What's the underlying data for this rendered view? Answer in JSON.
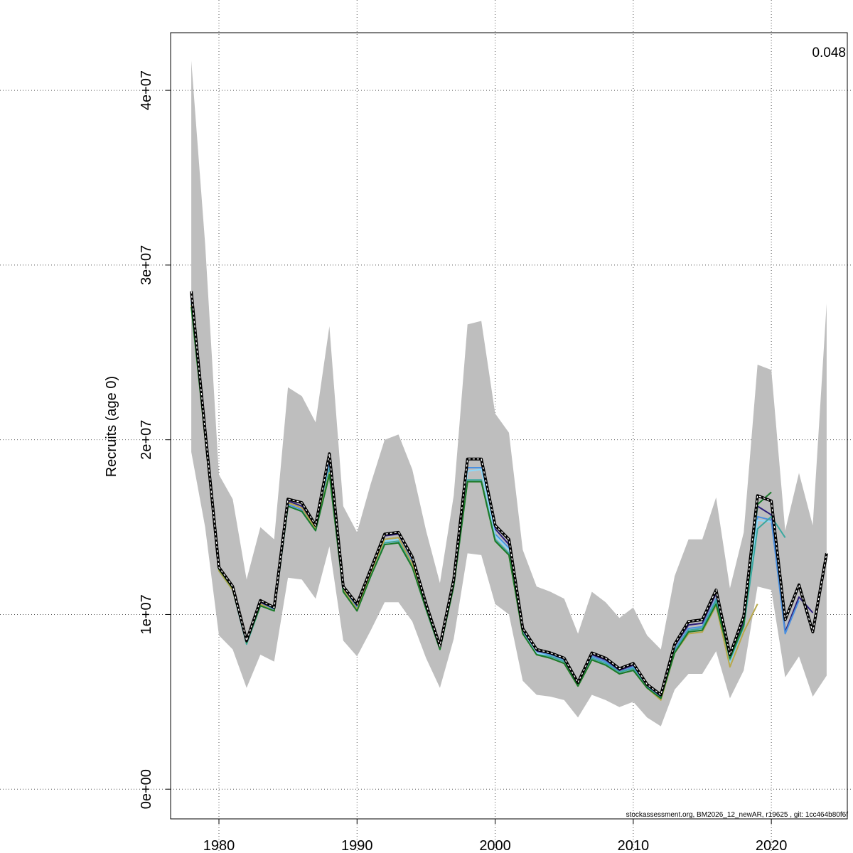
{
  "chart_data": {
    "type": "line",
    "ylabel": "Recruits (age 0)",
    "corner_value": "0.048",
    "footer": "stockassessment.org, BM2026_12_newAR, r19625 , git: 1cc464b80f6f",
    "xlim": [
      1976.5,
      2025.5
    ],
    "ylim": [
      -1700000,
      43300000
    ],
    "x_ticks": [
      1980,
      1990,
      2000,
      2010,
      2020
    ],
    "x_tick_labels": [
      "1980",
      "1990",
      "2000",
      "2010",
      "2020"
    ],
    "y_ticks": [
      0,
      10000000,
      20000000,
      30000000,
      40000000
    ],
    "y_tick_labels": [
      "0e+00",
      "1e+07",
      "2e+07",
      "3e+07",
      "4e+07"
    ],
    "grid": true,
    "years": [
      1978,
      1979,
      1980,
      1981,
      1982,
      1983,
      1984,
      1985,
      1986,
      1987,
      1988,
      1989,
      1990,
      1991,
      1992,
      1993,
      1994,
      1995,
      1996,
      1997,
      1998,
      1999,
      2000,
      2001,
      2002,
      2003,
      2004,
      2005,
      2006,
      2007,
      2008,
      2009,
      2010,
      2011,
      2012,
      2013,
      2014,
      2015,
      2016,
      2017,
      2018,
      2019,
      2020,
      2021,
      2022,
      2023,
      2024
    ],
    "ci_upper": [
      41700000,
      31200000,
      18000000,
      16600000,
      12000000,
      15000000,
      14300000,
      23000000,
      22500000,
      21000000,
      26500000,
      16200000,
      14700000,
      17500000,
      20000000,
      20300000,
      18300000,
      14800000,
      11800000,
      16800000,
      26600000,
      26800000,
      21500000,
      20400000,
      13700000,
      11600000,
      11300000,
      10900000,
      8900000,
      11300000,
      10700000,
      9800000,
      10400000,
      8800000,
      8000000,
      12200000,
      14300000,
      14300000,
      16700000,
      11500000,
      14700000,
      24300000,
      24000000,
      14800000,
      18100000,
      15100000,
      27800000
    ],
    "ci_lower": [
      19300000,
      15000000,
      8800000,
      8000000,
      5800000,
      7700000,
      7300000,
      12100000,
      12000000,
      10900000,
      13900000,
      8500000,
      7600000,
      9100000,
      10700000,
      10700000,
      9600000,
      7500000,
      5800000,
      8600000,
      13500000,
      13400000,
      10600000,
      10000000,
      6200000,
      5400000,
      5300000,
      5100000,
      4100000,
      5400000,
      5100000,
      4700000,
      5000000,
      4100000,
      3600000,
      5700000,
      6600000,
      6600000,
      7900000,
      5200000,
      6800000,
      11600000,
      11400000,
      6400000,
      7600000,
      5300000,
      6500000
    ],
    "series": [
      {
        "color": "#2c1e7a",
        "values": [
          28300000,
          20400000,
          12600000,
          11500000,
          8400000,
          10700000,
          10300000,
          16500000,
          16200000,
          15000000,
          19000000,
          11500000,
          10500000,
          12400000,
          14500000,
          14600000,
          13200000,
          10500000,
          8100000,
          11900000,
          18900000,
          18900000,
          14900000,
          14000000,
          9100000,
          7900000,
          7800000,
          7500000,
          6100000,
          7700000,
          7400000,
          6800000,
          7100000,
          5900000,
          5300000,
          8200000,
          9400000,
          9500000,
          11200000,
          7500000,
          9600000,
          16200000,
          15700000,
          9000000,
          11000000,
          10100000
        ]
      },
      {
        "color": "#4a90e0",
        "values": [
          28000000,
          20300000,
          12600000,
          11500000,
          8400000,
          10600000,
          10300000,
          16300000,
          16000000,
          14900000,
          18600000,
          11400000,
          10400000,
          12300000,
          14300000,
          14400000,
          13000000,
          10400000,
          8000000,
          11800000,
          18400000,
          18400000,
          14600000,
          13800000,
          9000000,
          7800000,
          7700000,
          7400000,
          6000000,
          7600000,
          7300000,
          6700000,
          7000000,
          5900000,
          5200000,
          8000000,
          9200000,
          9300000,
          10900000,
          7300000,
          9300000,
          15600000,
          15400000,
          8900000,
          10800000
        ]
      },
      {
        "color": "#8ed8f8",
        "values": [
          27900000,
          20200000,
          12500000,
          11400000,
          8300000,
          10600000,
          10200000,
          16200000,
          15900000,
          14800000,
          18400000,
          11300000,
          10300000,
          12300000,
          14200000,
          14300000,
          12900000,
          10300000,
          8000000,
          11700000,
          18200000,
          18300000,
          14500000,
          13700000,
          8900000,
          7800000,
          7600000,
          7300000,
          6000000,
          7500000,
          7200000,
          6700000,
          6900000,
          5800000,
          5200000,
          7900000,
          9100000,
          9200000,
          10800000,
          7300000,
          9300000,
          15400000,
          15300000
        ]
      },
      {
        "color": "#3aa8a0",
        "values": [
          27800000,
          20200000,
          12500000,
          11400000,
          8300000,
          10500000,
          10200000,
          16200000,
          15900000,
          14800000,
          18300000,
          11300000,
          10300000,
          12200000,
          14100000,
          14200000,
          12800000,
          10300000,
          8000000,
          11700000,
          17700000,
          17700000,
          14300000,
          13500000,
          8900000,
          7700000,
          7600000,
          7300000,
          6000000,
          7500000,
          7200000,
          6700000,
          6900000,
          5800000,
          5200000,
          7900000,
          9100000,
          9200000,
          10800000,
          7400000,
          9300000,
          14900000,
          15600000,
          14400000
        ]
      },
      {
        "color": "#b8a84a",
        "values": [
          27700000,
          20100000,
          12500000,
          11400000,
          8400000,
          10600000,
          10200000,
          16400000,
          16100000,
          14900000,
          18100000,
          11400000,
          10300000,
          12400000,
          14300000,
          14400000,
          12900000,
          10400000,
          8000000,
          11800000,
          17600000,
          17600000,
          14200000,
          13400000,
          8900000,
          7700000,
          7500000,
          7200000,
          5900000,
          7400000,
          7100000,
          6600000,
          6800000,
          5800000,
          5100000,
          7800000,
          8900000,
          9000000,
          10500000,
          7000000,
          9000000,
          10600000
        ]
      },
      {
        "color": "#1a7a2a",
        "values": [
          27600000,
          20100000,
          12600000,
          11500000,
          8400000,
          10500000,
          10200000,
          16200000,
          15900000,
          14800000,
          18000000,
          11300000,
          10200000,
          12200000,
          14000000,
          14100000,
          12700000,
          10300000,
          8000000,
          11600000,
          17600000,
          17600000,
          14200000,
          13400000,
          8900000,
          7700000,
          7500000,
          7200000,
          5900000,
          7400000,
          7100000,
          6600000,
          6800000,
          5800000,
          5200000,
          7800000,
          9000000,
          9100000,
          10600000,
          7500000,
          9400000,
          16300000,
          17000000
        ]
      },
      {
        "color": "#000000",
        "dashed": true,
        "values": [
          28500000,
          20500000,
          12700000,
          11600000,
          8500000,
          10800000,
          10400000,
          16600000,
          16400000,
          15100000,
          19200000,
          11600000,
          10600000,
          12600000,
          14600000,
          14700000,
          13300000,
          10600000,
          8200000,
          12000000,
          18900000,
          18900000,
          15100000,
          14300000,
          9200000,
          8000000,
          7800000,
          7500000,
          6100000,
          7800000,
          7500000,
          6900000,
          7200000,
          6000000,
          5400000,
          8300000,
          9600000,
          9700000,
          11400000,
          7700000,
          9900000,
          16800000,
          16500000,
          9700000,
          11700000,
          9000000,
          13500000
        ]
      }
    ]
  }
}
